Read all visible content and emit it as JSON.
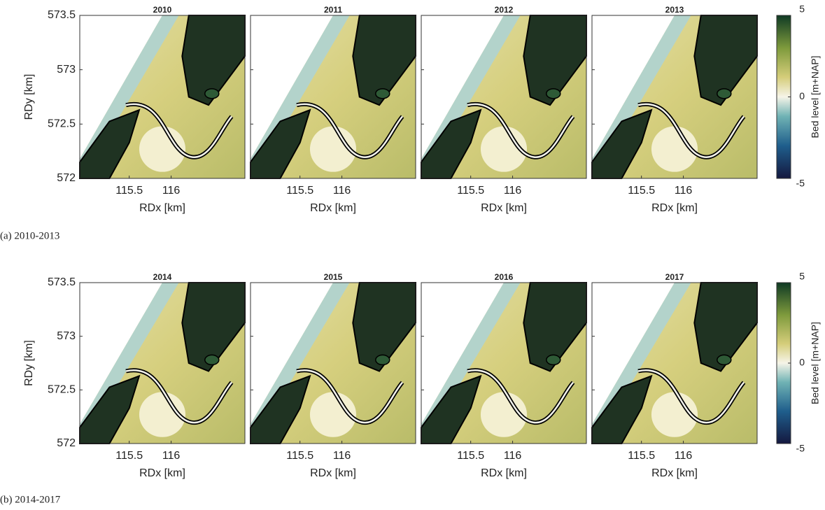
{
  "rows": [
    {
      "caption": "(a) 2010-2013",
      "panels": [
        {
          "title": "2010"
        },
        {
          "title": "2011"
        },
        {
          "title": "2012"
        },
        {
          "title": "2013"
        }
      ]
    },
    {
      "caption": "(b) 2014-2017",
      "panels": [
        {
          "title": "2014"
        },
        {
          "title": "2015"
        },
        {
          "title": "2016"
        },
        {
          "title": "2017"
        }
      ]
    }
  ],
  "xlabel": "RDx [km]",
  "ylabel": "RDy [km]",
  "xlim": [
    114.91,
    116.88
  ],
  "xticks": [
    115.5,
    116
  ],
  "ylim": [
    572,
    573.5
  ],
  "yticks": [
    572,
    572.5,
    573,
    573.5
  ],
  "colorbar": {
    "label": "Bed level [m+NAP]",
    "lim": [
      -5,
      5
    ],
    "ticks": [
      -5,
      0,
      5
    ]
  }
}
